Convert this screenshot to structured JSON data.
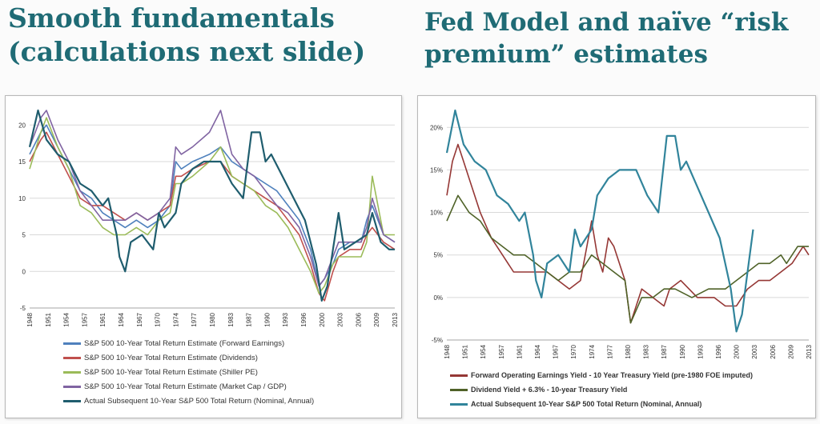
{
  "slide": {
    "left_title_line1": "Smooth fundamentals",
    "left_title_line2": "(calculations next slide)",
    "right_title_line1": "Fed Model and naïve “risk",
    "right_title_line2": "premium” estimates"
  },
  "chart_data": [
    {
      "type": "line",
      "title": "",
      "xlabel": "",
      "ylabel": "",
      "xlim": [
        1948,
        2013
      ],
      "ylim": [
        -5,
        22
      ],
      "y_ticks": [
        -5,
        0,
        5,
        10,
        15,
        20
      ],
      "y_tick_labels": [
        "-5",
        "0",
        "5",
        "10",
        "15",
        "20"
      ],
      "x_tick_labels": [
        "1948",
        "1951",
        "1954",
        "1957",
        "1961",
        "1964",
        "1967",
        "1970",
        "1974",
        "1977",
        "1980",
        "1983",
        "1987",
        "1990",
        "1993",
        "1996",
        "2000",
        "2003",
        "2006",
        "2009",
        "2013"
      ],
      "grid": true,
      "legend_position": "bottom",
      "series": [
        {
          "name": "S&P 500 10-Year Total Return Estimate (Forward Earnings)",
          "color": "#4f81bd",
          "x": [
            1948,
            1950,
            1951,
            1953,
            1955,
            1957,
            1959,
            1961,
            1963,
            1965,
            1967,
            1969,
            1971,
            1973,
            1974,
            1975,
            1977,
            1980,
            1982,
            1984,
            1986,
            1988,
            1990,
            1992,
            1994,
            1996,
            1998,
            1999.5,
            2000.5,
            2002,
            2003,
            2005,
            2007,
            2008,
            2009,
            2011,
            2013
          ],
          "y": [
            16,
            19,
            20,
            17,
            14,
            11,
            10,
            8,
            7,
            6,
            7,
            6,
            7,
            9,
            15,
            14,
            15,
            16,
            17,
            15,
            14,
            13,
            12,
            11,
            9,
            7,
            3,
            -2,
            -1,
            1,
            3,
            4,
            4,
            7,
            9,
            5,
            4
          ]
        },
        {
          "name": "S&P 500 10-Year Total Return Estimate (Dividends)",
          "color": "#c0504d",
          "x": [
            1948,
            1950,
            1951,
            1953,
            1955,
            1957,
            1959,
            1961,
            1963,
            1965,
            1967,
            1969,
            1971,
            1973,
            1974,
            1975,
            1977,
            1980,
            1982,
            1984,
            1986,
            1988,
            1990,
            1992,
            1994,
            1996,
            1998,
            1999.5,
            2000.5,
            2002,
            2003,
            2005,
            2007,
            2008,
            2009,
            2011,
            2013
          ],
          "y": [
            15,
            18,
            19,
            16,
            13,
            10,
            9,
            9,
            8,
            7,
            8,
            7,
            8,
            9,
            13,
            13,
            14,
            15,
            15,
            13,
            12,
            11,
            10,
            9,
            7,
            5,
            1,
            -3,
            -4,
            0,
            2,
            3,
            3,
            5,
            6,
            4,
            3
          ]
        },
        {
          "name": "S&P 500 10-Year Total Return Estimate (Shiller PE)",
          "color": "#9bbb59",
          "x": [
            1948,
            1950,
            1951,
            1953,
            1955,
            1957,
            1959,
            1961,
            1963,
            1965,
            1967,
            1969,
            1971,
            1973,
            1974,
            1975,
            1977,
            1980,
            1982,
            1984,
            1986,
            1988,
            1990,
            1992,
            1994,
            1996,
            1998,
            1999.5,
            2000.5,
            2002,
            2003,
            2005,
            2007,
            2008,
            2009,
            2011,
            2013
          ],
          "y": [
            14,
            19,
            21,
            17,
            14,
            9,
            8,
            6,
            5,
            5,
            6,
            5,
            7,
            8,
            12,
            12,
            13,
            15,
            17,
            13,
            12,
            11,
            9,
            8,
            6,
            3,
            0,
            -3,
            -2,
            1,
            2,
            2,
            2,
            4,
            13,
            5,
            5
          ]
        },
        {
          "name": "S&P 500 10-Year Total Return Estimate (Market Cap / GDP)",
          "color": "#8064a2",
          "x": [
            1948,
            1950,
            1951,
            1953,
            1955,
            1957,
            1959,
            1961,
            1963,
            1965,
            1967,
            1969,
            1971,
            1973,
            1974,
            1975,
            1977,
            1980,
            1982,
            1984,
            1986,
            1988,
            1990,
            1992,
            1994,
            1996,
            1998,
            1999.5,
            2000.5,
            2002,
            2003,
            2005,
            2007,
            2008,
            2009,
            2011,
            2013
          ],
          "y": [
            17,
            21,
            22,
            18,
            15,
            11,
            9,
            7,
            7,
            7,
            8,
            7,
            8,
            10,
            17,
            16,
            17,
            19,
            22,
            16,
            14,
            13,
            11,
            9,
            8,
            6,
            2,
            -2,
            -1,
            2,
            4,
            4,
            4,
            6,
            10,
            5,
            4
          ]
        },
        {
          "name": "Actual Subsequent 10-Year S&P 500 Total Return (Nominal, Annual)",
          "color": "#1f5d6e",
          "x": [
            1948,
            1949.5,
            1951,
            1953,
            1955,
            1957,
            1959,
            1961,
            1962,
            1963.5,
            1964,
            1965,
            1966,
            1968,
            1970,
            1971,
            1972,
            1974,
            1975,
            1977,
            1979,
            1982,
            1984,
            1986,
            1987.5,
            1989,
            1990,
            1991,
            1993,
            1995,
            1997,
            1999,
            2000,
            2001,
            2002,
            2003,
            2004,
            2006,
            2008,
            2009,
            2010.5,
            2012,
            2013
          ],
          "y": [
            17,
            22,
            18,
            16,
            15,
            12,
            11,
            9,
            10,
            5,
            2,
            0,
            4,
            5,
            3,
            8,
            6,
            8,
            12,
            14,
            15,
            15,
            12,
            10,
            19,
            19,
            15,
            16,
            13,
            10,
            7,
            1,
            -4,
            -2,
            3,
            8,
            3,
            4,
            5,
            8,
            4,
            3,
            3
          ]
        }
      ]
    },
    {
      "type": "line",
      "title": "",
      "xlabel": "",
      "ylabel": "",
      "xlim": [
        1948,
        2013
      ],
      "ylim": [
        -5,
        22
      ],
      "y_ticks": [
        -5,
        0,
        5,
        10,
        15,
        20
      ],
      "y_tick_labels": [
        "-5%",
        "0%",
        "5%",
        "10%",
        "15%",
        "20%"
      ],
      "x_tick_labels": [
        "1948",
        "1951",
        "1954",
        "1957",
        "1961",
        "1964",
        "1967",
        "1970",
        "1974",
        "1977",
        "1980",
        "1983",
        "1987",
        "1990",
        "1993",
        "1996",
        "2000",
        "2003",
        "2006",
        "2009",
        "2013"
      ],
      "grid": true,
      "legend_position": "bottom",
      "series": [
        {
          "name": "Forward Operating Earnings Yield - 10 Year Treasury Yield (pre-1980 FOE imputed)",
          "color": "#953735",
          "x": [
            1948,
            1949,
            1950,
            1951,
            1952,
            1954,
            1956,
            1958,
            1960,
            1962,
            1964,
            1966,
            1968,
            1970,
            1972,
            1974,
            1975,
            1976,
            1977,
            1978,
            1980,
            1981,
            1983,
            1985,
            1987,
            1988,
            1990,
            1993,
            1996,
            1998,
            2000,
            2002,
            2004,
            2006,
            2008,
            2010,
            2012,
            2013
          ],
          "y": [
            12,
            16,
            18,
            16,
            14,
            10,
            7,
            5,
            3,
            3,
            3,
            3,
            2,
            1,
            2,
            9,
            5,
            3,
            7,
            6,
            2,
            -3,
            1,
            0,
            -1,
            1,
            2,
            0,
            0,
            -1,
            -1,
            1,
            2,
            2,
            3,
            4,
            6,
            5
          ]
        },
        {
          "name": "Dividend Yield + 6.3% - 10-year Treasury Yield",
          "color": "#4f6228",
          "x": [
            1948,
            1950,
            1952,
            1954,
            1956,
            1958,
            1960,
            1962,
            1964,
            1966,
            1968,
            1970,
            1972,
            1974,
            1976,
            1978,
            1980,
            1981,
            1983,
            1985,
            1987,
            1989,
            1992,
            1995,
            1998,
            2000,
            2002,
            2004,
            2006,
            2008,
            2009,
            2011,
            2013
          ],
          "y": [
            9,
            12,
            10,
            9,
            7,
            6,
            5,
            5,
            4,
            3,
            2,
            3,
            3,
            5,
            4,
            3,
            2,
            -3,
            0,
            0,
            1,
            1,
            0,
            1,
            1,
            2,
            3,
            4,
            4,
            5,
            4,
            6,
            6
          ]
        },
        {
          "name": "Actual Subsequent 10-Year S&P 500 Total Return (Nominal, Annual)",
          "color": "#31849b",
          "x": [
            1948,
            1949.5,
            1951,
            1953,
            1955,
            1957,
            1959,
            1961,
            1962,
            1963.5,
            1964,
            1965,
            1966,
            1968,
            1970,
            1971,
            1972,
            1974,
            1975,
            1977,
            1979,
            1982,
            1984,
            1986,
            1987.5,
            1989,
            1990,
            1991,
            1993,
            1995,
            1997,
            1999,
            2000,
            2001,
            2002,
            2003
          ],
          "y": [
            17,
            22,
            18,
            16,
            15,
            12,
            11,
            9,
            10,
            5,
            2,
            0,
            4,
            5,
            3,
            8,
            6,
            8,
            12,
            14,
            15,
            15,
            12,
            10,
            19,
            19,
            15,
            16,
            13,
            10,
            7,
            1,
            -4,
            -2,
            3,
            8
          ]
        }
      ]
    }
  ]
}
